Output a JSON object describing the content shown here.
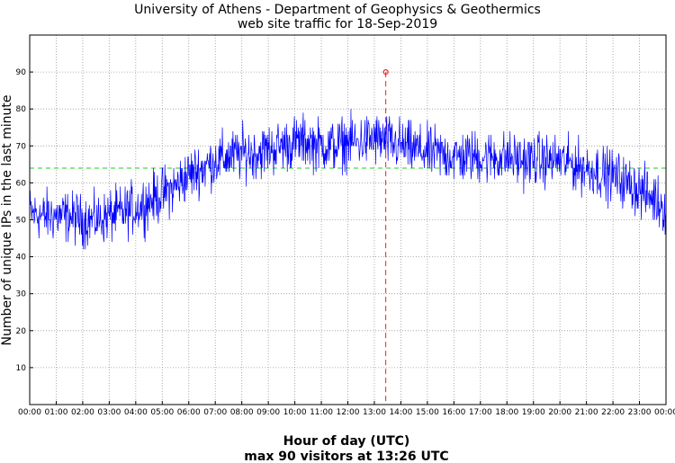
{
  "chart_data": {
    "type": "line",
    "title_line1": "University of Athens - Department of Geophysics & Geothermics",
    "title_line2": "web site traffic for 18-Sep-2019",
    "xlabel": "Hour of day (UTC)",
    "xlabel_sub": "max 90 visitors at 13:26 UTC",
    "ylabel": "Number of unique IPs in the last minute",
    "xlim": [
      0,
      24
    ],
    "ylim": [
      0,
      100
    ],
    "yticks": [
      10,
      20,
      30,
      40,
      50,
      60,
      70,
      80,
      90
    ],
    "xtick_labels": [
      "00:00",
      "01:00",
      "02:00",
      "03:00",
      "04:00",
      "05:00",
      "06:00",
      "07:00",
      "08:00",
      "09:00",
      "10:00",
      "11:00",
      "12:00",
      "13:00",
      "14:00",
      "15:00",
      "16:00",
      "17:00",
      "18:00",
      "19:00",
      "20:00",
      "21:00",
      "22:00",
      "23:00",
      "00:00"
    ],
    "grid": true,
    "mean_line": {
      "value": 64,
      "color": "#22cc22",
      "style": "dashed"
    },
    "max_marker": {
      "time": "13:26",
      "x_hours": 13.43,
      "value": 90,
      "color": "#ee2222"
    },
    "series": [
      {
        "color": "#0000ff",
        "x_hours": [
          0,
          0.5,
          1,
          1.5,
          2,
          2.5,
          3,
          3.5,
          4,
          4.5,
          5,
          5.5,
          6,
          6.5,
          7,
          7.5,
          8,
          8.5,
          9,
          9.5,
          10,
          10.5,
          11,
          11.5,
          12,
          12.5,
          13,
          13.5,
          14,
          14.5,
          15,
          15.5,
          16,
          16.5,
          17,
          17.5,
          18,
          18.5,
          19,
          19.5,
          20,
          20.5,
          21,
          21.5,
          22,
          22.5,
          23,
          23.5,
          24
        ],
        "values": [
          52,
          51,
          51,
          51,
          50,
          50,
          51,
          52,
          53,
          55,
          57,
          59,
          62,
          64,
          66,
          67,
          68,
          68,
          69,
          70,
          71,
          71,
          70,
          70,
          71,
          71,
          72,
          71,
          70,
          69,
          68,
          68,
          67,
          67,
          67,
          67,
          67,
          66,
          66,
          66,
          66,
          65,
          64,
          63,
          62,
          60,
          58,
          56,
          53
        ]
      }
    ]
  }
}
